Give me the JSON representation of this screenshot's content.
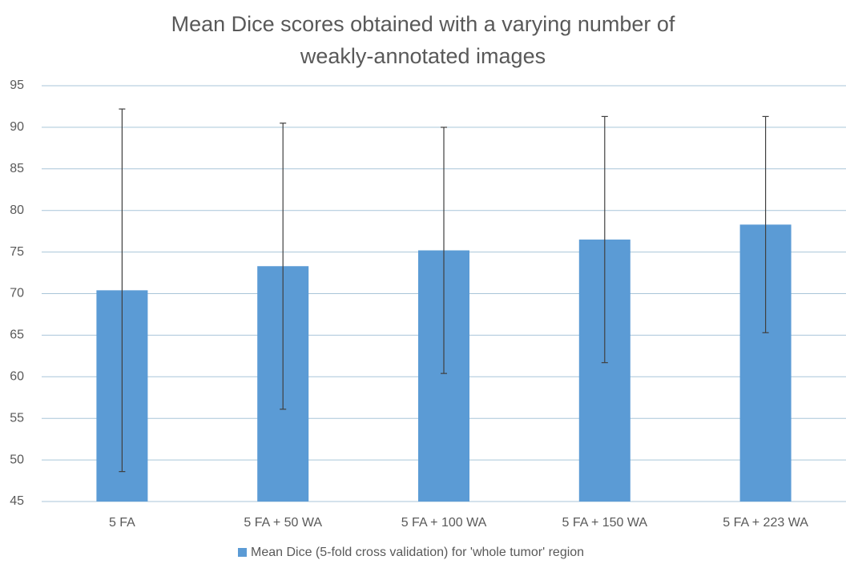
{
  "chart_data": {
    "type": "bar",
    "title": "Mean Dice scores obtained with a varying number of weakly-annotated images",
    "categories": [
      "5 FA",
      "5 FA + 50 WA",
      "5 FA + 100 WA",
      "5 FA + 150 WA",
      "5 FA + 223 WA"
    ],
    "series": [
      {
        "name": "Mean Dice (5-fold cross validation) for 'whole tumor' region",
        "color": "#5b9bd5",
        "values": [
          70.4,
          73.3,
          75.2,
          76.5,
          78.3
        ],
        "errors": [
          21.8,
          17.2,
          14.8,
          14.8,
          13.0
        ]
      }
    ],
    "ylim": [
      45,
      95
    ],
    "yticks": [
      45,
      50,
      55,
      60,
      65,
      70,
      75,
      80,
      85,
      90,
      95
    ],
    "grid": true,
    "legend": "bottom"
  }
}
